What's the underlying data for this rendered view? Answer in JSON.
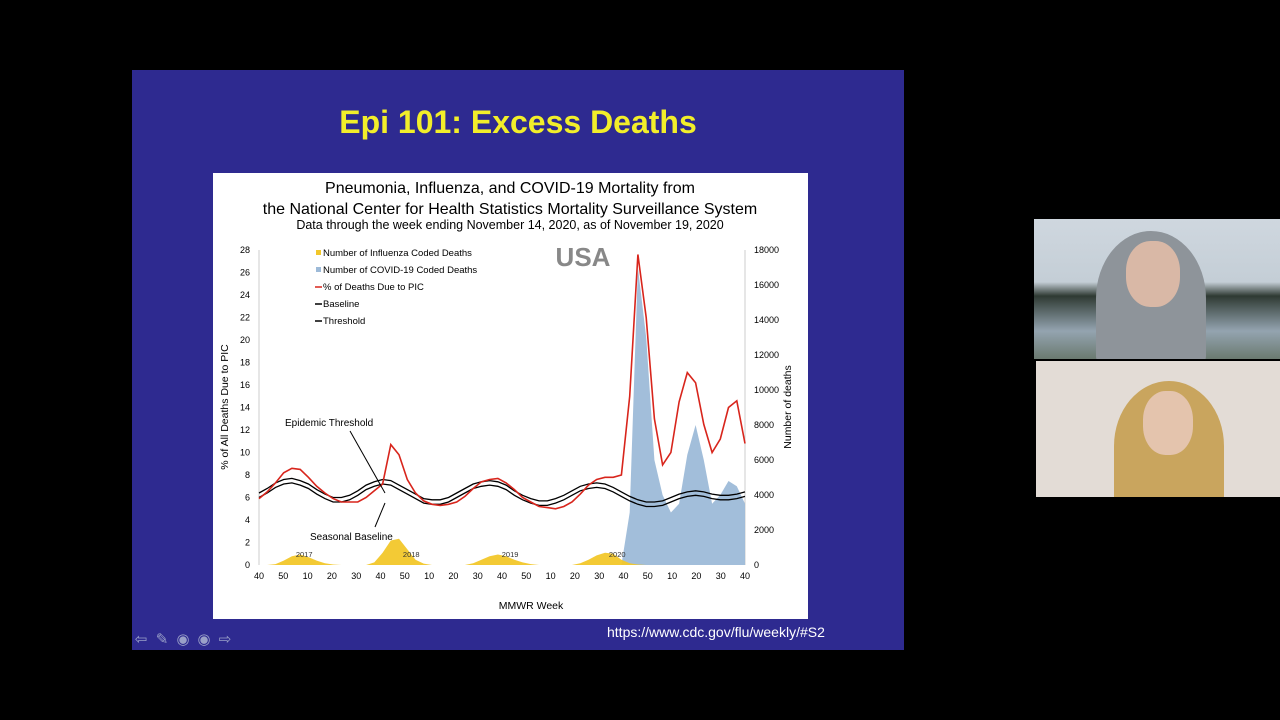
{
  "slide": {
    "title": "Epi 101: Excess Deaths",
    "source_url": "https://www.cdc.gov/flu/weekly/#S2"
  },
  "chart_data": {
    "type": "line",
    "title_lines": [
      "Pneumonia, Influenza, and COVID-19 Mortality from",
      "the National Center for Health Statistics Mortality Surveillance System"
    ],
    "subtitle": "Data through the week ending November 14, 2020, as of November 19, 2020",
    "region_label": "USA",
    "xlabel": "MMWR Week",
    "ylabel_left": "% of All Deaths Due to PIC",
    "ylabel_right": "Number of deaths",
    "ylim_left": [
      0,
      28
    ],
    "ylim_right": [
      0,
      18000
    ],
    "y_ticks_left": [
      "0",
      "2",
      "4",
      "6",
      "8",
      "10",
      "12",
      "14",
      "16",
      "18",
      "20",
      "22",
      "24",
      "26",
      "28"
    ],
    "y_ticks_right": [
      "0",
      "2000",
      "4000",
      "6000",
      "8000",
      "10000",
      "12000",
      "14000",
      "16000",
      "18000"
    ],
    "x_ticks": [
      "40",
      "50",
      "10",
      "20",
      "30",
      "40",
      "50",
      "10",
      "20",
      "30",
      "40",
      "50",
      "10",
      "20",
      "30",
      "40",
      "50",
      "10",
      "20",
      "30",
      "40"
    ],
    "year_labels": [
      "2017",
      "2018",
      "2019",
      "2020"
    ],
    "legend": [
      {
        "label": "Number of Influenza Coded Deaths",
        "color": "#f2c72a",
        "marker": "square"
      },
      {
        "label": "Number of COVID-19 Coded Deaths",
        "color": "#9dbad8",
        "marker": "square"
      },
      {
        "label": "% of Deaths Due to PIC",
        "color": "#d8251c",
        "marker": "line"
      },
      {
        "label": "Baseline",
        "color": "#000000",
        "marker": "line"
      },
      {
        "label": "Threshold",
        "color": "#000000",
        "marker": "line"
      }
    ],
    "annotations": [
      "Epidemic Threshold",
      "Seasonal Baseline"
    ],
    "x_start_week_label": "2017 week 40",
    "series": [
      {
        "name": "% of Deaths Due to PIC",
        "axis": "left",
        "values": [
          5.9,
          6.5,
          7.3,
          8.2,
          8.6,
          8.5,
          7.8,
          7.0,
          6.4,
          5.9,
          5.6,
          5.6,
          5.6,
          6.0,
          6.6,
          7.2,
          10.7,
          9.8,
          7.6,
          6.4,
          5.7,
          5.4,
          5.3,
          5.4,
          5.6,
          6.1,
          6.8,
          7.4,
          7.6,
          7.7,
          7.3,
          6.7,
          6.0,
          5.6,
          5.2,
          5.1,
          5.0,
          5.2,
          5.6,
          6.3,
          7.1,
          7.6,
          7.8,
          7.8,
          8.0,
          15.0,
          27.6,
          22.0,
          13.0,
          8.9,
          10.0,
          14.5,
          17.1,
          16.2,
          12.5,
          10.0,
          11.2,
          14.0,
          14.6,
          10.8
        ]
      },
      {
        "name": "Baseline",
        "axis": "left",
        "values": [
          6.0,
          6.4,
          6.9,
          7.2,
          7.3,
          7.1,
          6.8,
          6.3,
          5.9,
          5.6,
          5.6,
          5.8,
          6.2,
          6.7,
          7.0,
          7.2,
          7.1,
          6.7,
          6.3,
          5.9,
          5.5,
          5.4,
          5.4,
          5.6,
          6.0,
          6.4,
          6.8,
          7.0,
          7.1,
          7.0,
          6.7,
          6.2,
          5.8,
          5.5,
          5.3,
          5.3,
          5.5,
          5.8,
          6.2,
          6.6,
          6.8,
          6.9,
          6.8,
          6.5,
          6.1,
          5.7,
          5.4,
          5.2,
          5.2,
          5.3,
          5.6,
          5.9,
          6.1,
          6.2,
          6.1,
          5.9,
          5.8,
          5.8,
          5.9,
          6.1
        ]
      },
      {
        "name": "Threshold",
        "axis": "left",
        "values": [
          6.4,
          6.8,
          7.3,
          7.6,
          7.7,
          7.5,
          7.2,
          6.7,
          6.3,
          6.0,
          6.0,
          6.2,
          6.6,
          7.1,
          7.4,
          7.6,
          7.5,
          7.1,
          6.7,
          6.3,
          5.9,
          5.8,
          5.8,
          6.0,
          6.4,
          6.8,
          7.2,
          7.4,
          7.5,
          7.4,
          7.1,
          6.6,
          6.2,
          5.9,
          5.7,
          5.7,
          5.9,
          6.2,
          6.6,
          7.0,
          7.2,
          7.3,
          7.2,
          6.9,
          6.5,
          6.1,
          5.8,
          5.6,
          5.6,
          5.7,
          6.0,
          6.3,
          6.5,
          6.6,
          6.5,
          6.3,
          6.2,
          6.2,
          6.3,
          6.5
        ]
      },
      {
        "name": "Number of Influenza Coded Deaths",
        "axis": "right",
        "values": [
          0,
          0,
          50,
          250,
          500,
          600,
          450,
          250,
          100,
          30,
          0,
          0,
          0,
          0,
          150,
          700,
          1400,
          1500,
          900,
          300,
          80,
          0,
          0,
          0,
          0,
          0,
          100,
          300,
          500,
          600,
          500,
          300,
          150,
          50,
          0,
          0,
          0,
          0,
          0,
          100,
          300,
          550,
          700,
          650,
          300,
          100,
          30,
          0,
          0,
          0,
          0,
          0,
          0,
          0,
          0,
          0,
          0,
          0,
          0,
          0
        ]
      },
      {
        "name": "Number of COVID-19 Coded Deaths",
        "axis": "right",
        "values": [
          0,
          0,
          0,
          0,
          0,
          0,
          0,
          0,
          0,
          0,
          0,
          0,
          0,
          0,
          0,
          0,
          0,
          0,
          0,
          0,
          0,
          0,
          0,
          0,
          0,
          0,
          0,
          0,
          0,
          0,
          0,
          0,
          0,
          0,
          0,
          0,
          0,
          0,
          0,
          0,
          0,
          0,
          0,
          0,
          0,
          3000,
          17000,
          13000,
          6000,
          4000,
          3000,
          3500,
          6300,
          8000,
          6000,
          3500,
          4000,
          4800,
          4500,
          3500
        ]
      }
    ]
  }
}
